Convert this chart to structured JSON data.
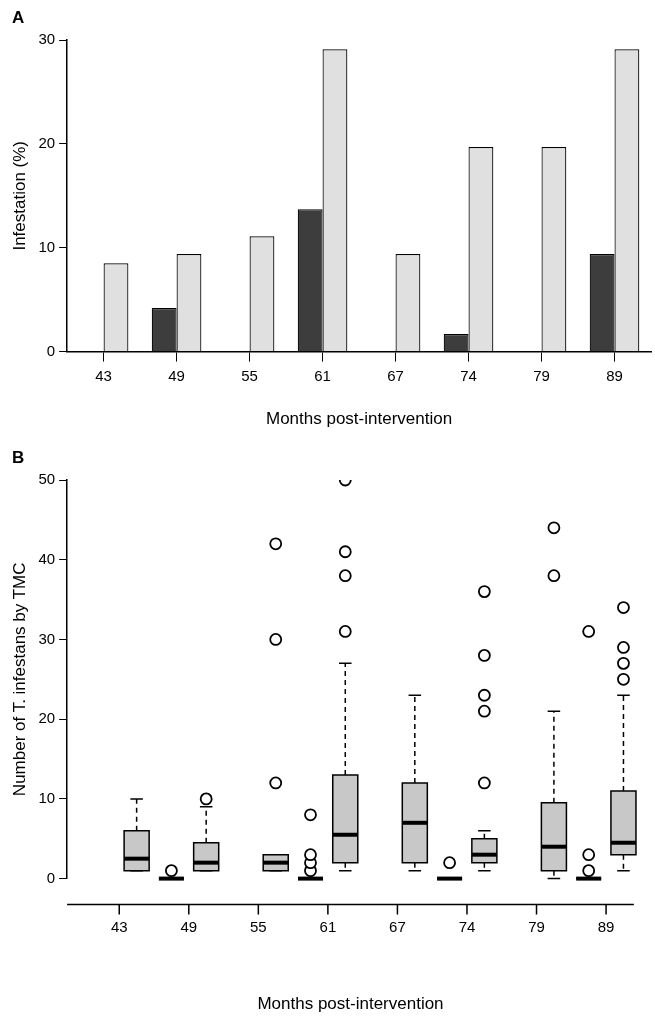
{
  "chart_data": [
    {
      "type": "bar",
      "title": "A",
      "xlabel": "Months post-intervention",
      "ylabel": "Infestation (%)",
      "categories": [
        "43",
        "49",
        "55",
        "61",
        "67",
        "74",
        "79",
        "89"
      ],
      "ylim": [
        0,
        30
      ],
      "yticks": [
        0,
        10,
        20,
        30
      ],
      "grid": false,
      "legend": false,
      "series": [
        {
          "color": "#3d3d3d",
          "values": [
            0,
            4.2,
            0,
            13.7,
            0,
            1.7,
            0,
            9.4
          ]
        },
        {
          "color": "#e0e0e0",
          "values": [
            8.5,
            9.4,
            11.1,
            29.1,
            9.4,
            19.7,
            19.7,
            29.1
          ]
        }
      ]
    },
    {
      "type": "box",
      "title": "B",
      "xlabel": "Months post-intervention",
      "ylabel": "Number of T. infestans by TMC",
      "categories": [
        "43",
        "49",
        "55",
        "61",
        "67",
        "74",
        "79",
        "89"
      ],
      "ylim": [
        0,
        50
      ],
      "yticks": [
        0,
        10,
        20,
        30,
        40,
        50
      ],
      "grid": false,
      "legend": false,
      "marker": "circle",
      "series": [
        {
          "color": "#000000",
          "boxes": [
            null,
            {
              "low": 0,
              "q1": 0,
              "median": 0,
              "q3": 0,
              "high": 0,
              "outliers": [
                1
              ]
            },
            null,
            {
              "low": 0,
              "q1": 0,
              "median": 0,
              "q3": 0,
              "high": 0,
              "outliers": [
                1,
                2,
                3,
                8
              ]
            },
            null,
            {
              "low": 0,
              "q1": 0,
              "median": 0,
              "q3": 0,
              "high": 0,
              "outliers": [
                2
              ]
            },
            null,
            {
              "low": 0,
              "q1": 0,
              "median": 0,
              "q3": 0,
              "high": 0,
              "outliers": [
                1,
                3,
                31
              ]
            }
          ]
        },
        {
          "color": "#c8c8c8",
          "boxes": [
            {
              "low": 1,
              "q1": 1,
              "median": 2.5,
              "q3": 6,
              "high": 10
            },
            {
              "low": 1,
              "q1": 1,
              "median": 2,
              "q3": 4.5,
              "high": 9,
              "outliers": [
                10
              ]
            },
            {
              "low": 1,
              "q1": 1,
              "median": 2,
              "q3": 3,
              "high": 3,
              "outliers": [
                12,
                30,
                42
              ]
            },
            {
              "low": 1,
              "q1": 2,
              "median": 5.5,
              "q3": 13,
              "high": 27,
              "outliers": [
                31,
                38,
                41,
                50
              ]
            },
            {
              "low": 1,
              "q1": 2,
              "median": 7,
              "q3": 12,
              "high": 23
            },
            {
              "low": 1,
              "q1": 2,
              "median": 3,
              "q3": 5,
              "high": 6,
              "outliers": [
                12,
                21,
                23,
                28,
                36
              ]
            },
            {
              "low": 0,
              "q1": 1,
              "median": 4,
              "q3": 9.5,
              "high": 21,
              "outliers": [
                38,
                44
              ]
            },
            {
              "low": 1,
              "q1": 3,
              "median": 4.5,
              "q3": 11,
              "high": 23,
              "outliers": [
                25,
                27,
                29,
                34
              ]
            }
          ]
        }
      ]
    }
  ]
}
